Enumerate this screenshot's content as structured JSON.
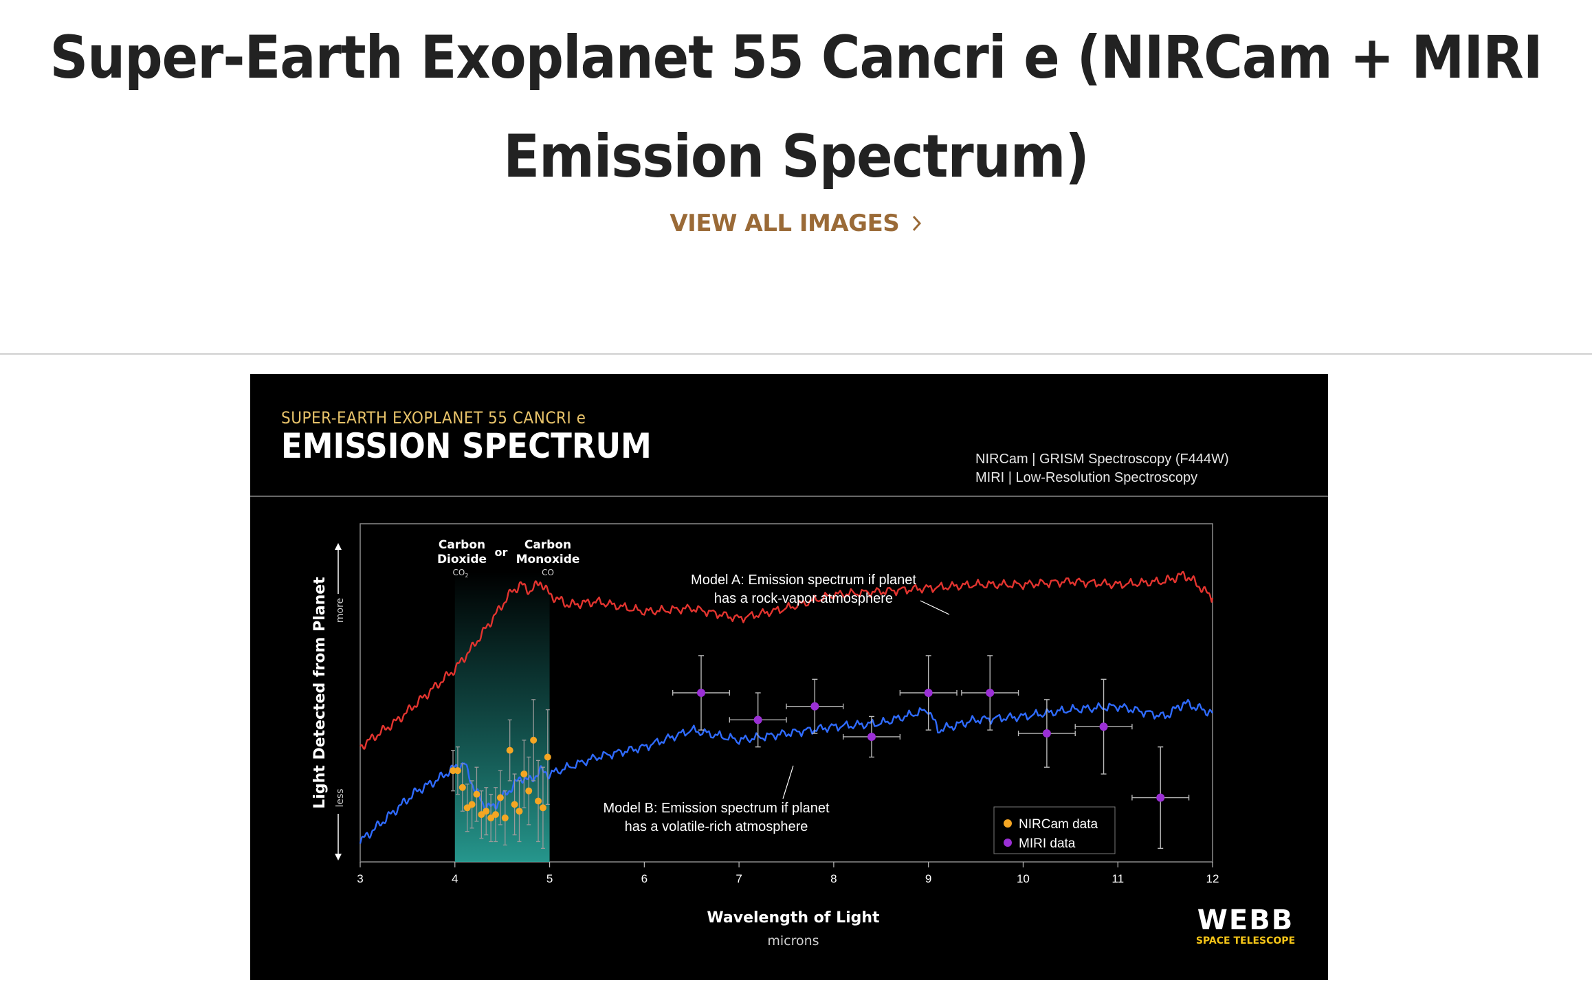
{
  "page": {
    "title": "Super-Earth Exoplanet 55 Cancri e (NIRCam + MIRI Emission Spectrum)",
    "view_all_label": "VIEW ALL IMAGES",
    "chevron_icon": "chevron-right-icon",
    "colors": {
      "title": "#222222",
      "link": "#9a6a37",
      "divider": "#cfcfcf"
    }
  },
  "figure": {
    "kicker": "SUPER-EARTH EXOPLANET 55 CANCRI e",
    "heading": "EMISSION SPECTRUM",
    "instrument_1": "NIRCam | GRISM Spectroscopy (F444W)",
    "instrument_2": "MIRI | Low-Resolution Spectroscopy",
    "ylabel": "Light Detected from Planet",
    "ylabel_more": "more",
    "ylabel_less": "less",
    "xlabel": "Wavelength of Light",
    "xunit": "microns",
    "band": {
      "co2_line1": "Carbon",
      "co2_line2": "Dioxide",
      "co2_formula": "CO",
      "co2_subscript": "2",
      "or": "or",
      "co_line1": "Carbon",
      "co_line2": "Monoxide",
      "co_formula": "CO"
    },
    "model_a_line1": "Model A: Emission spectrum if planet",
    "model_a_line2": "has a rock-vapor atmosphere",
    "model_b_line1": "Model B: Emission spectrum if planet",
    "model_b_line2": "has a volatile-rich atmosphere",
    "legend_nircam": "NIRCam data",
    "legend_miri": "MIRI data",
    "logo_main": "WEBB",
    "logo_sub": "SPACE TELESCOPE",
    "colors": {
      "background": "#000000",
      "kicker": "#e8c36a",
      "model_a": "#e3342f",
      "model_b": "#2f6bff",
      "nircam": "#f5a623",
      "miri": "#9b2fd6",
      "band": "#1f8c84",
      "logo_sub": "#f5c518"
    }
  },
  "chart_data": {
    "type": "line",
    "xlabel": "Wavelength of Light",
    "xunit": "microns",
    "ylabel": "Light Detected from Planet",
    "xlim": [
      3,
      12
    ],
    "x_ticks": [
      3,
      4,
      5,
      6,
      7,
      8,
      9,
      10,
      11,
      12
    ],
    "y_scale": "qualitative (less to more)",
    "ylim": [
      0,
      100
    ],
    "highlight_band": {
      "x": [
        4,
        5
      ],
      "label": "Carbon Dioxide (CO2) or Carbon Monoxide (CO)"
    },
    "series": [
      {
        "name": "Model A: Emission spectrum if planet has a rock-vapor atmosphere",
        "kind": "line",
        "x": [
          3.0,
          3.2,
          3.4,
          3.6,
          3.8,
          4.0,
          4.2,
          4.4,
          4.6,
          4.7,
          4.8,
          4.9,
          5.0,
          5.2,
          5.5,
          6.0,
          6.5,
          7.0,
          7.5,
          8.0,
          8.5,
          9.0,
          9.5,
          10.0,
          10.5,
          11.0,
          11.5,
          11.7,
          11.8,
          12.0
        ],
        "y": [
          34,
          38,
          42,
          47,
          52,
          57,
          64,
          72,
          80,
          82,
          80,
          83,
          79,
          76,
          77,
          74,
          75,
          72,
          75,
          79,
          80,
          81,
          82,
          82,
          83,
          82,
          83,
          85,
          83,
          78
        ]
      },
      {
        "name": "Model B: Emission spectrum if planet has a volatile-rich atmosphere",
        "kind": "line",
        "x": [
          3.0,
          3.2,
          3.4,
          3.6,
          3.8,
          4.0,
          4.1,
          4.2,
          4.3,
          4.4,
          4.5,
          4.6,
          4.7,
          4.8,
          4.9,
          5.0,
          5.5,
          6.0,
          6.5,
          7.0,
          7.5,
          8.0,
          8.5,
          9.0,
          9.1,
          9.5,
          10.0,
          10.5,
          11.0,
          11.5,
          11.7,
          12.0
        ],
        "y": [
          6,
          11,
          16,
          21,
          24,
          28,
          29,
          22,
          17,
          16,
          19,
          22,
          25,
          24,
          27,
          26,
          31,
          34,
          39,
          36,
          38,
          40,
          41,
          45,
          39,
          42,
          43,
          45,
          46,
          43,
          47,
          44
        ]
      },
      {
        "name": "NIRCam data",
        "kind": "scatter_errorbars",
        "x": [
          3.98,
          4.03,
          4.08,
          4.13,
          4.18,
          4.23,
          4.28,
          4.33,
          4.38,
          4.43,
          4.48,
          4.53,
          4.58,
          4.63,
          4.68,
          4.73,
          4.78,
          4.83,
          4.88,
          4.93,
          4.98
        ],
        "y": [
          27,
          27,
          22,
          16,
          17,
          20,
          14,
          15,
          13,
          14,
          19,
          13,
          33,
          17,
          15,
          26,
          21,
          36,
          18,
          16,
          31
        ],
        "yerr": [
          6,
          7,
          7,
          7,
          7,
          8,
          7,
          7,
          7,
          8,
          8,
          8,
          9,
          9,
          9,
          10,
          10,
          12,
          12,
          12,
          14
        ]
      },
      {
        "name": "MIRI data",
        "kind": "scatter_errorbars",
        "x": [
          6.6,
          7.2,
          7.8,
          8.4,
          9.0,
          9.65,
          10.25,
          10.85,
          11.45
        ],
        "y": [
          50,
          42,
          46,
          37,
          50,
          50,
          38,
          40,
          19
        ],
        "xerr": [
          0.3,
          0.3,
          0.3,
          0.3,
          0.3,
          0.3,
          0.3,
          0.3,
          0.3
        ],
        "yerr": [
          11,
          8,
          8,
          6,
          11,
          11,
          10,
          14,
          15
        ]
      }
    ],
    "legend": [
      "NIRCam data",
      "MIRI data"
    ],
    "legend_position": "bottom-right",
    "grid": false
  }
}
